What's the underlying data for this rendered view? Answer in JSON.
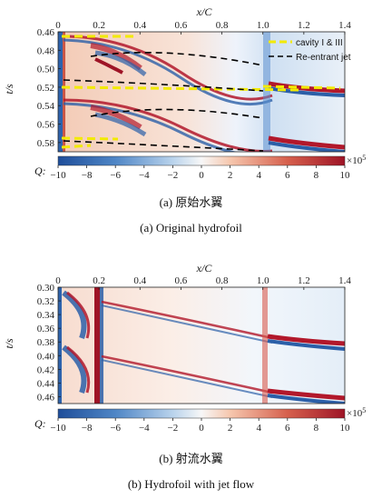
{
  "chart_data": [
    {
      "type": "heatmap",
      "panel": "a",
      "xlabel": "x/C",
      "ylabel": "t/s",
      "x_ticks": [
        "0",
        "0.2",
        "0.4",
        "0.6",
        "0.8",
        "1.0",
        "1.2",
        "1.4"
      ],
      "y_ticks": [
        "0.46",
        "0.48",
        "0.50",
        "0.52",
        "0.54",
        "0.56",
        "0.58"
      ],
      "xlim": [
        0,
        1.4
      ],
      "ylim": [
        0.46,
        0.59
      ],
      "y_direction": "down",
      "colorbar": {
        "label": "Q:",
        "ticks": [
          "−10",
          "−8",
          "−6",
          "−4",
          "−2",
          "0",
          "2",
          "4",
          "6",
          "8",
          "10"
        ],
        "range": [
          -10,
          10
        ],
        "exponent": "×10",
        "exponent_power": "5",
        "colors": [
          "#2166ac",
          "#ffffff",
          "#b2182b"
        ]
      },
      "legend": {
        "position": "top-right",
        "entries": [
          {
            "label": "cavity I & III",
            "color": "#f2ea00",
            "style": "dashed"
          },
          {
            "label": "Re-entrant jet",
            "color": "#000000",
            "style": "dashed"
          }
        ]
      },
      "caption_cn": "(a) 原始水翼",
      "caption_en": "(a) Original hydrofoil"
    },
    {
      "type": "heatmap",
      "panel": "b",
      "xlabel": "x/C",
      "ylabel": "t/s",
      "x_ticks": [
        "0",
        "0.2",
        "0.4",
        "0.6",
        "0.8",
        "1.0",
        "1.2",
        "1.4"
      ],
      "y_ticks": [
        "0.30",
        "0.32",
        "0.34",
        "0.36",
        "0.38",
        "0.40",
        "0.42",
        "0.44",
        "0.46"
      ],
      "xlim": [
        0,
        1.4
      ],
      "ylim": [
        0.3,
        0.47
      ],
      "y_direction": "down",
      "colorbar": {
        "label": "Q:",
        "ticks": [
          "−10",
          "−8",
          "−6",
          "−4",
          "−2",
          "0",
          "2",
          "4",
          "6",
          "8",
          "10"
        ],
        "range": [
          -10,
          10
        ],
        "exponent": "×10",
        "exponent_power": "5",
        "colors": [
          "#2166ac",
          "#ffffff",
          "#b2182b"
        ]
      },
      "caption_cn": "(b) 射流水翼",
      "caption_en": "(b) Hydrofoil with jet flow"
    }
  ]
}
